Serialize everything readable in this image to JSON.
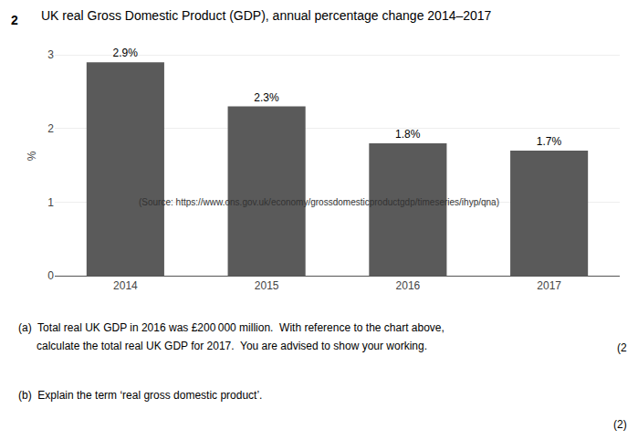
{
  "chart_data": {
    "type": "bar",
    "title": "UK real Gross Domestic Product (GDP), annual percentage change 2014–2017",
    "categories": [
      "2014",
      "2015",
      "2016",
      "2017"
    ],
    "values": [
      2.9,
      2.3,
      1.8,
      1.7
    ],
    "value_labels": [
      "2.9%",
      "2.3%",
      "1.8%",
      "1.7%"
    ],
    "data_labels": true,
    "color": "#5a5a5a",
    "ylabel": "%",
    "ylim": [
      0,
      3.25
    ],
    "yticks": [
      0,
      1,
      2,
      3
    ],
    "grid": true,
    "annotations": [
      "2",
      "(Source: https://www.ons.gov.uk/economy/grossdomesticproductgdp/timeseries/ihyp/qna)",
      "(a)  Total real UK GDP in 2016 was £200 000 million.  With reference to the chart above,",
      "      calculate the total real UK GDP for 2017.  You are advised to show your working.",
      "(2",
      "(b)  Explain the term ‘real gross domestic product’.",
      "(2)"
    ]
  }
}
